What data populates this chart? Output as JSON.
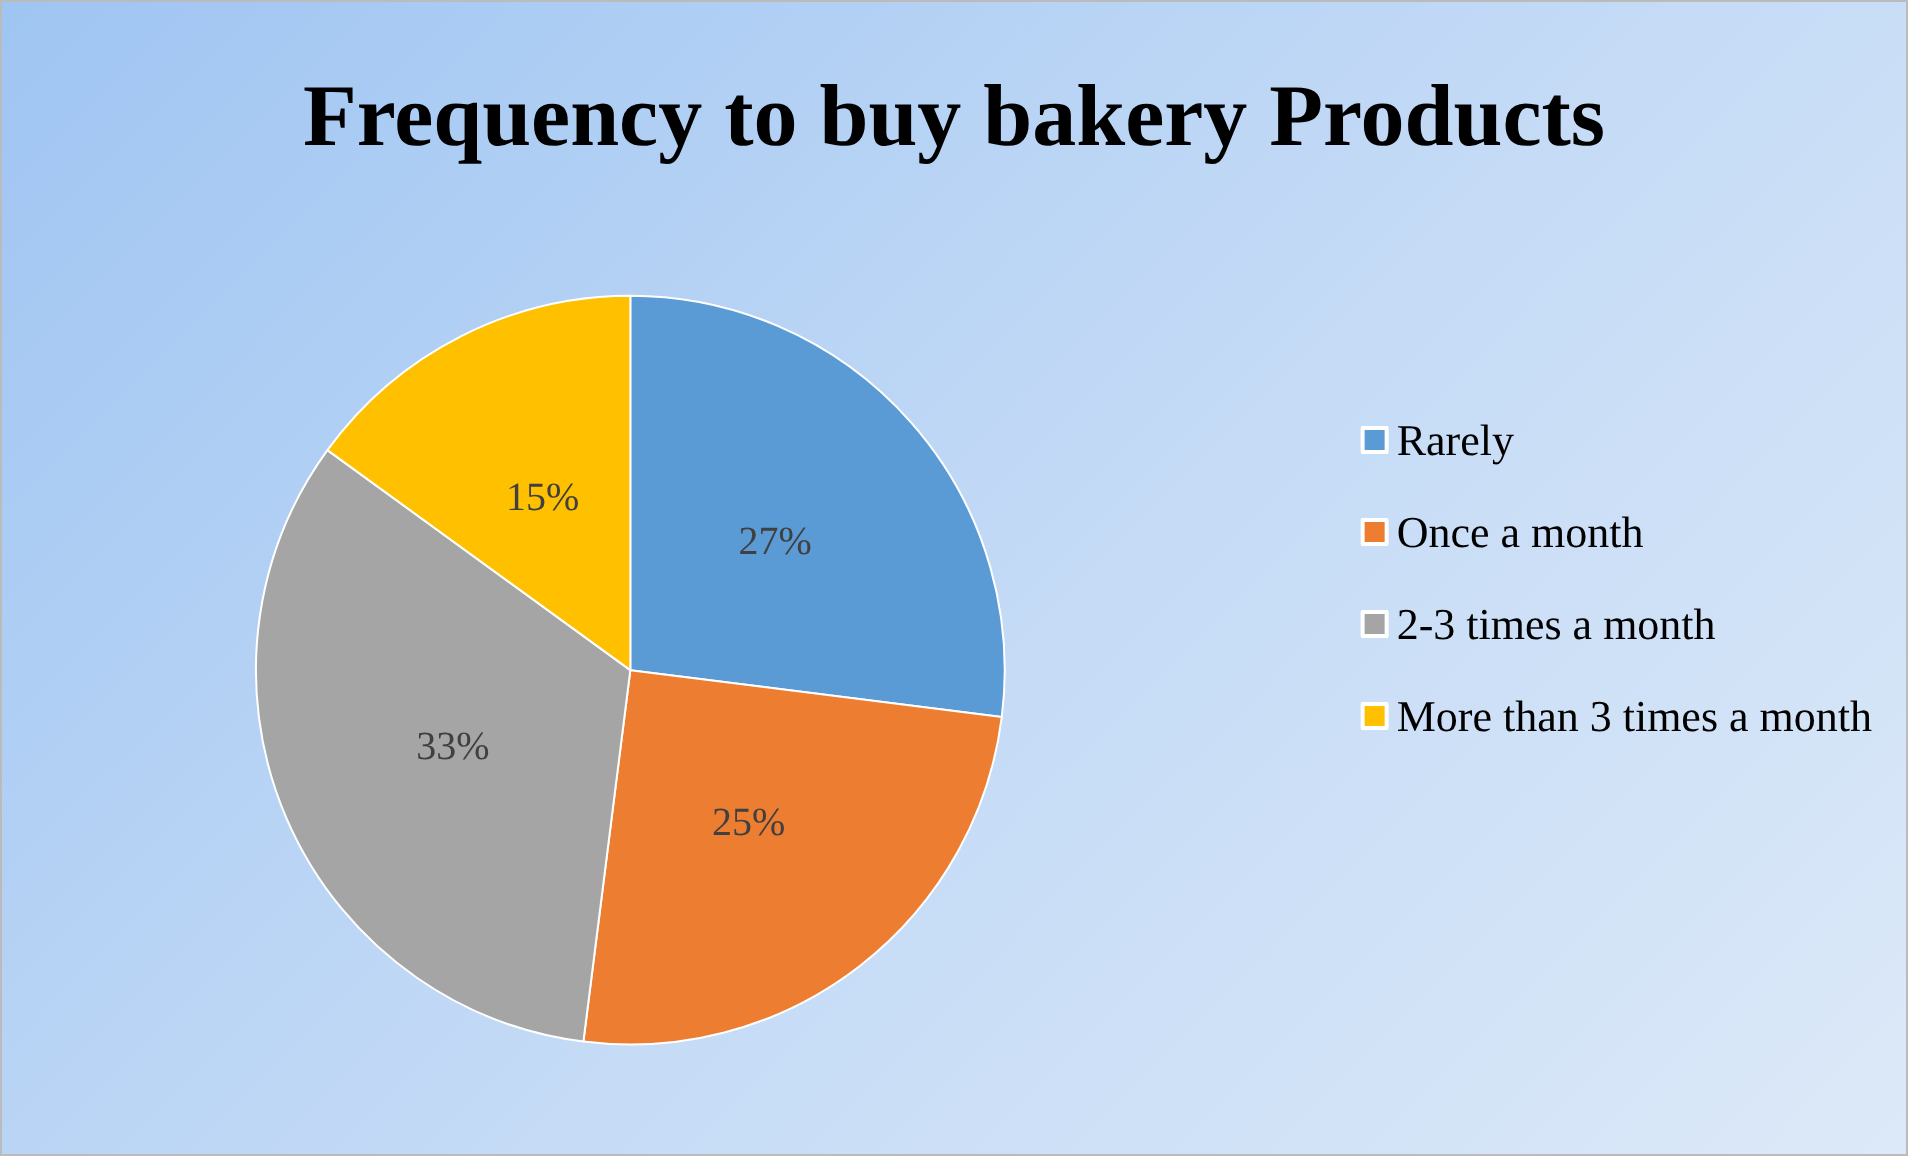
{
  "chart_data": {
    "type": "pie",
    "title": "Frequency to buy bakery Products",
    "categories": [
      "Rarely",
      "Once a month",
      "2-3 times a month",
      "More than 3 times a month"
    ],
    "values": [
      27,
      25,
      33,
      15
    ],
    "colors": [
      "#5b9bd5",
      "#ed7d31",
      "#a5a5a5",
      "#ffc000"
    ],
    "value_labels": [
      "27%",
      "25%",
      "33%",
      "15%"
    ],
    "legend": "right"
  }
}
